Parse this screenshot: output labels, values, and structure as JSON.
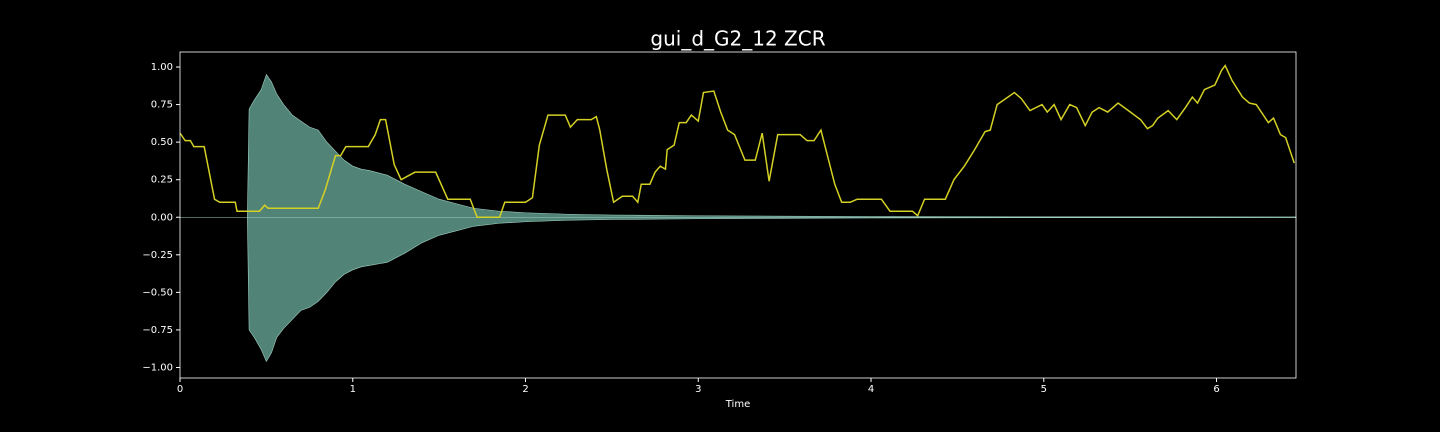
{
  "chart_data": {
    "type": "line",
    "title": "gui_d_G2_12 ZCR",
    "xlabel": "Time",
    "xlim": [
      0,
      6.46
    ],
    "ylim": [
      -1.07,
      1.1
    ],
    "xticks": [
      0,
      1,
      2,
      3,
      4,
      5,
      6
    ],
    "yticks": [
      {
        "value": -1,
        "label": "−1.00"
      },
      {
        "value": -0.75,
        "label": "−0.75"
      },
      {
        "value": -0.5,
        "label": "−0.50"
      },
      {
        "value": -0.25,
        "label": "−0.25"
      },
      {
        "value": 0,
        "label": "0.00"
      },
      {
        "value": 0.25,
        "label": "0.25"
      },
      {
        "value": 0.5,
        "label": "0.50"
      },
      {
        "value": 0.75,
        "label": "0.75"
      },
      {
        "value": 1,
        "label": "1.00"
      }
    ],
    "series": [
      {
        "color": "#5f9a8c",
        "x": [
          0,
          0.39,
          0.4,
          0.43,
          0.47,
          0.5,
          0.53,
          0.56,
          0.6,
          0.65,
          0.7,
          0.75,
          0.8,
          0.85,
          0.9,
          0.95,
          1.0,
          1.05,
          1.1,
          1.2,
          1.3,
          1.4,
          1.5,
          1.6,
          1.7,
          1.85,
          2.0,
          2.25,
          2.5,
          3.0,
          3.5,
          4.0,
          5.0,
          6.46
        ],
        "values": [
          0,
          0,
          0.72,
          0.78,
          0.85,
          0.95,
          0.9,
          0.82,
          0.75,
          0.68,
          0.64,
          0.6,
          0.58,
          0.5,
          0.44,
          0.38,
          0.34,
          0.32,
          0.31,
          0.28,
          0.22,
          0.17,
          0.12,
          0.09,
          0.06,
          0.04,
          0.03,
          0.02,
          0.015,
          0.01,
          0.007,
          0.005,
          0.003,
          0.002
        ],
        "lower": [
          0,
          0,
          -0.75,
          -0.8,
          -0.88,
          -0.96,
          -0.9,
          -0.8,
          -0.74,
          -0.68,
          -0.62,
          -0.6,
          -0.56,
          -0.5,
          -0.43,
          -0.38,
          -0.35,
          -0.33,
          -0.32,
          -0.3,
          -0.24,
          -0.17,
          -0.12,
          -0.09,
          -0.06,
          -0.04,
          -0.03,
          -0.02,
          -0.015,
          -0.01,
          -0.007,
          -0.005,
          -0.003,
          -0.002
        ]
      },
      {
        "color": "#d4d024",
        "x": [
          0,
          0.03,
          0.06,
          0.08,
          0.14,
          0.2,
          0.23,
          0.32,
          0.33,
          0.46,
          0.49,
          0.51,
          0.8,
          0.84,
          0.9,
          0.93,
          0.96,
          1.09,
          1.13,
          1.16,
          1.19,
          1.24,
          1.28,
          1.36,
          1.48,
          1.55,
          1.68,
          1.72,
          1.85,
          1.88,
          2.0,
          2.04,
          2.08,
          2.13,
          2.23,
          2.26,
          2.3,
          2.38,
          2.41,
          2.43,
          2.47,
          2.51,
          2.56,
          2.62,
          2.65,
          2.67,
          2.72,
          2.75,
          2.78,
          2.81,
          2.82,
          2.86,
          2.89,
          2.93,
          2.96,
          3.0,
          3.03,
          3.09,
          3.13,
          3.17,
          3.21,
          3.27,
          3.33,
          3.37,
          3.41,
          3.46,
          3.59,
          3.63,
          3.67,
          3.71,
          3.79,
          3.83,
          3.88,
          3.92,
          4.06,
          4.11,
          4.24,
          4.27,
          4.31,
          4.43,
          4.48,
          4.54,
          4.6,
          4.66,
          4.69,
          4.73,
          4.83,
          4.87,
          4.92,
          4.99,
          5.02,
          5.06,
          5.1,
          5.15,
          5.19,
          5.24,
          5.28,
          5.32,
          5.37,
          5.43,
          5.49,
          5.56,
          5.6,
          5.63,
          5.66,
          5.72,
          5.77,
          5.82,
          5.86,
          5.89,
          5.93,
          5.99,
          6.03,
          6.05,
          6.09,
          6.15,
          6.19,
          6.23,
          6.3,
          6.33,
          6.37,
          6.4,
          6.45
        ],
        "values": [
          0.56,
          0.51,
          0.51,
          0.47,
          0.47,
          0.12,
          0.1,
          0.1,
          0.04,
          0.04,
          0.08,
          0.06,
          0.06,
          0.18,
          0.41,
          0.41,
          0.47,
          0.47,
          0.55,
          0.65,
          0.65,
          0.35,
          0.25,
          0.3,
          0.3,
          0.12,
          0.12,
          0.0,
          0.0,
          0.1,
          0.1,
          0.13,
          0.48,
          0.68,
          0.68,
          0.6,
          0.65,
          0.65,
          0.67,
          0.58,
          0.32,
          0.1,
          0.14,
          0.14,
          0.1,
          0.22,
          0.22,
          0.3,
          0.34,
          0.32,
          0.45,
          0.48,
          0.63,
          0.63,
          0.68,
          0.64,
          0.83,
          0.84,
          0.7,
          0.58,
          0.55,
          0.38,
          0.38,
          0.56,
          0.24,
          0.55,
          0.55,
          0.51,
          0.51,
          0.58,
          0.22,
          0.1,
          0.1,
          0.12,
          0.12,
          0.04,
          0.04,
          0.01,
          0.12,
          0.12,
          0.25,
          0.34,
          0.45,
          0.57,
          0.58,
          0.75,
          0.83,
          0.79,
          0.71,
          0.75,
          0.7,
          0.75,
          0.65,
          0.75,
          0.73,
          0.61,
          0.7,
          0.73,
          0.7,
          0.76,
          0.71,
          0.65,
          0.59,
          0.61,
          0.66,
          0.71,
          0.65,
          0.73,
          0.8,
          0.76,
          0.85,
          0.88,
          0.98,
          1.01,
          0.91,
          0.8,
          0.76,
          0.75,
          0.63,
          0.66,
          0.55,
          0.53,
          0.36
        ]
      }
    ]
  }
}
